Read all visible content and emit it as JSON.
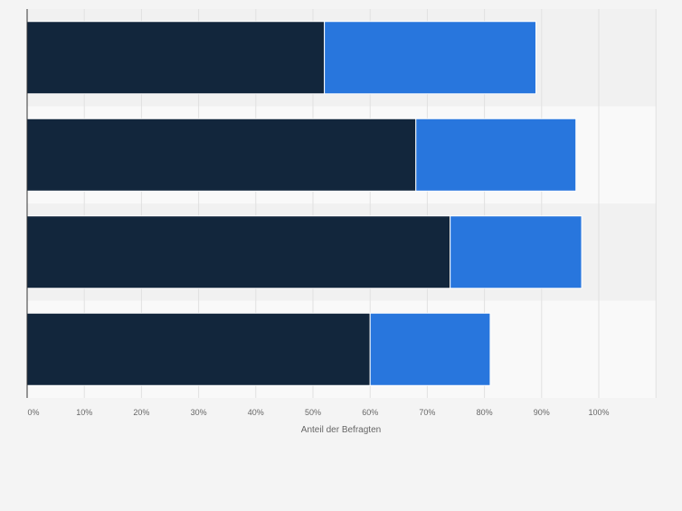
{
  "chart_data": {
    "type": "bar",
    "orientation": "horizontal",
    "stacked": true,
    "categories": [
      "",
      "",
      "",
      ""
    ],
    "series": [
      {
        "values": [
          52,
          68,
          74,
          60
        ]
      },
      {
        "values": [
          37,
          28,
          23,
          21
        ]
      }
    ],
    "xlabel": "Anteil der Befragten",
    "xlim": [
      0,
      110
    ],
    "xticks": [
      "0%",
      "10%",
      "20%",
      "30%",
      "40%",
      "50%",
      "60%",
      "70%",
      "80%",
      "90%",
      "100%"
    ],
    "grid": true,
    "legend": "none"
  },
  "colors": {
    "series": [
      "#12263c",
      "#2876dd"
    ],
    "page_background": "#f4f4f4",
    "band_dark": "#f1f1f1",
    "band_light": "#f9f9f9",
    "grid": "#e1e1e1",
    "axis": "#333333",
    "tick_text": "#666666"
  }
}
